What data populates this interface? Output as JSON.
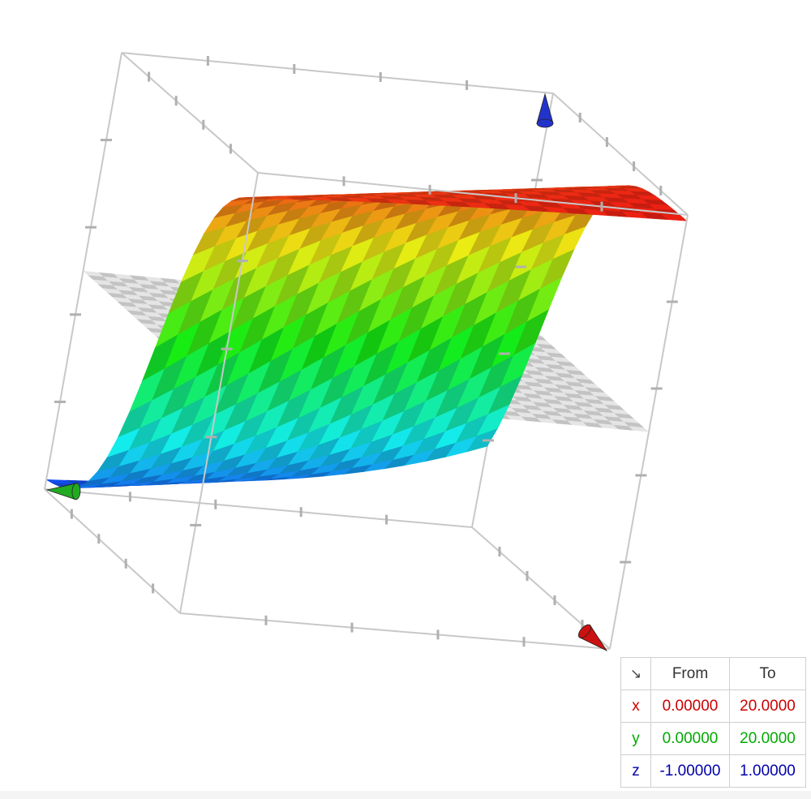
{
  "chart_data": {
    "type": "surface3d",
    "title": "",
    "axes": {
      "x": {
        "label": "x",
        "from": "0.00000",
        "to": "20.0000",
        "range": [
          0,
          20
        ],
        "color": "#cc0000"
      },
      "y": {
        "label": "y",
        "from": "0.00000",
        "to": "20.0000",
        "range": [
          0,
          20
        ],
        "color": "#00aa00"
      },
      "z": {
        "label": "z",
        "from": "-1.00000",
        "to": "1.00000",
        "range": [
          -1,
          1
        ],
        "color": "#0000aa"
      }
    },
    "surface": {
      "colormap": "rainbow-by-height",
      "checkered": true,
      "z_min_color": "#2a4fd6",
      "z_max_color": "#c81c10",
      "grid_resolution": 22
    },
    "reference_plane": {
      "z": 0,
      "color": "#b8b8b8"
    },
    "bounding_box": true,
    "grid": false,
    "axis_arrow_colors": {
      "x": "#cc1111",
      "y": "#22aa22",
      "z": "#2233cc"
    }
  },
  "range_table": {
    "corner_icon": "diagonal-arrow-icon",
    "corner_glyph": "↘",
    "headers": {
      "from": "From",
      "to": "To"
    },
    "rows": [
      {
        "axis": "x",
        "from": "0.00000",
        "to": "20.0000",
        "color": "#cc0000"
      },
      {
        "axis": "y",
        "from": "0.00000",
        "to": "20.0000",
        "color": "#00aa00"
      },
      {
        "axis": "z",
        "from": "-1.00000",
        "to": "1.00000",
        "color": "#0000aa"
      }
    ]
  }
}
